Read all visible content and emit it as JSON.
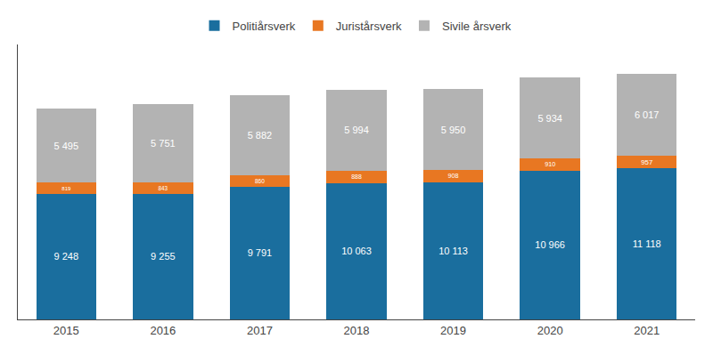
{
  "chart_data": {
    "type": "bar",
    "stacked": true,
    "data_labels": true,
    "tick_labels": "x",
    "grid": false,
    "legend": "top",
    "categories": [
      "2015",
      "2016",
      "2017",
      "2018",
      "2019",
      "2020",
      "2021"
    ],
    "ylim": [
      0,
      20263.04
    ],
    "series": [
      {
        "name": "Politiårsverk",
        "color": "#1a6e9e",
        "values": [
          9248,
          9255,
          9791,
          10063,
          10113,
          10966,
          11118
        ],
        "value_labels": [
          "9 248",
          "9 255",
          "9 791",
          "10 063",
          "10 113",
          "10 966",
          "11 118"
        ]
      },
      {
        "name": "Juristårsverk",
        "color": "#e87722",
        "values": [
          819,
          843,
          860,
          888,
          908,
          910,
          957
        ]
      },
      {
        "name": "Sivile årsverk",
        "color": "#b3b3b3",
        "values": [
          5495,
          5751,
          5882,
          5994,
          5950,
          5934,
          6017
        ],
        "value_labels": [
          "5 495",
          "5 751",
          "5 882",
          "5 994",
          "5 950",
          "5 934",
          "6 017"
        ]
      }
    ]
  }
}
